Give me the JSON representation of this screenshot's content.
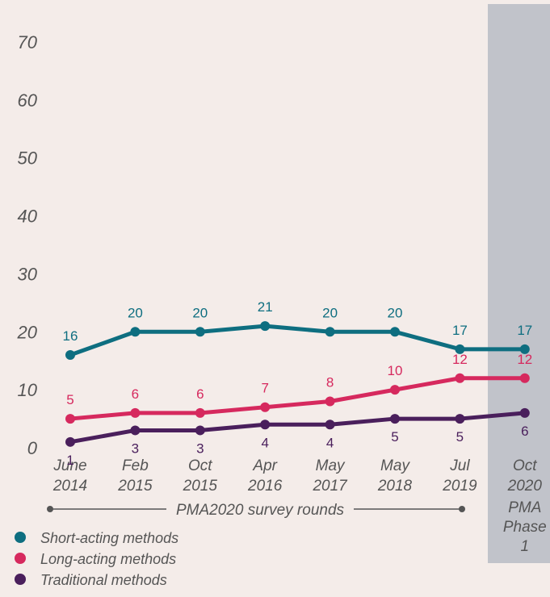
{
  "chart_data": {
    "type": "line",
    "categories": [
      "June 2014",
      "Feb 2015",
      "Oct 2015",
      "Apr 2016",
      "May 2017",
      "May 2018",
      "Jul 2019",
      "Oct 2020"
    ],
    "series": [
      {
        "name": "Short-acting methods",
        "color": "#0e6e80",
        "values": [
          16,
          20,
          20,
          21,
          20,
          20,
          17,
          17
        ]
      },
      {
        "name": "Long-acting methods",
        "color": "#d6295e",
        "values": [
          5,
          6,
          6,
          7,
          8,
          10,
          12,
          12
        ]
      },
      {
        "name": "Traditional methods",
        "color": "#4a1f5c",
        "values": [
          1,
          3,
          3,
          4,
          4,
          5,
          5,
          6
        ]
      }
    ],
    "ylim": [
      0,
      70
    ],
    "yticks": [
      0,
      10,
      20,
      30,
      40,
      50,
      60,
      70
    ],
    "grid": false,
    "annotations": [
      "PMA2020 survey rounds",
      "PMA Phase 1"
    ]
  }
}
